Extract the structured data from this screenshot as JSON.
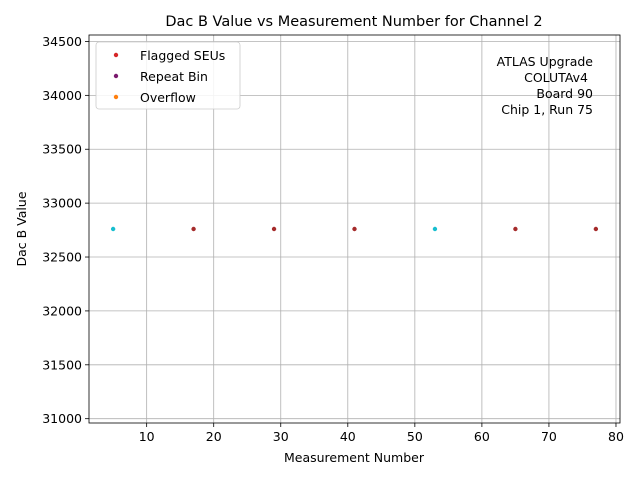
{
  "chart_data": {
    "type": "scatter",
    "title": "Dac B Value vs Measurement Number for Channel 2",
    "xlabel": "Measurement Number",
    "ylabel": "Dac B Value",
    "xlim": [
      1.4,
      80.6
    ],
    "ylim": [
      30960,
      34560
    ],
    "xticks": [
      10,
      20,
      30,
      40,
      50,
      60,
      70,
      80
    ],
    "yticks": [
      31000,
      31500,
      32000,
      32500,
      33000,
      33500,
      34000,
      34500
    ],
    "grid": true,
    "legend_position": "upper-left",
    "legend": [
      {
        "label": "Flagged SEUs",
        "color": "#d62728"
      },
      {
        "label": "Repeat Bin",
        "color": "#7b1a6e"
      },
      {
        "label": "Overflow",
        "color": "#ff7f0e"
      }
    ],
    "series": [
      {
        "color": "#17becf",
        "x": [
          5,
          53
        ],
        "y": [
          32760,
          32760
        ]
      },
      {
        "color": "#a52a2a",
        "x": [
          17,
          29,
          41,
          65,
          77
        ],
        "y": [
          32760,
          32760,
          32760,
          32760,
          32760
        ]
      }
    ],
    "annotation": [
      "ATLAS Upgrade",
      "COLUTAv4",
      "Board 90",
      "Chip 1, Run 75"
    ]
  }
}
